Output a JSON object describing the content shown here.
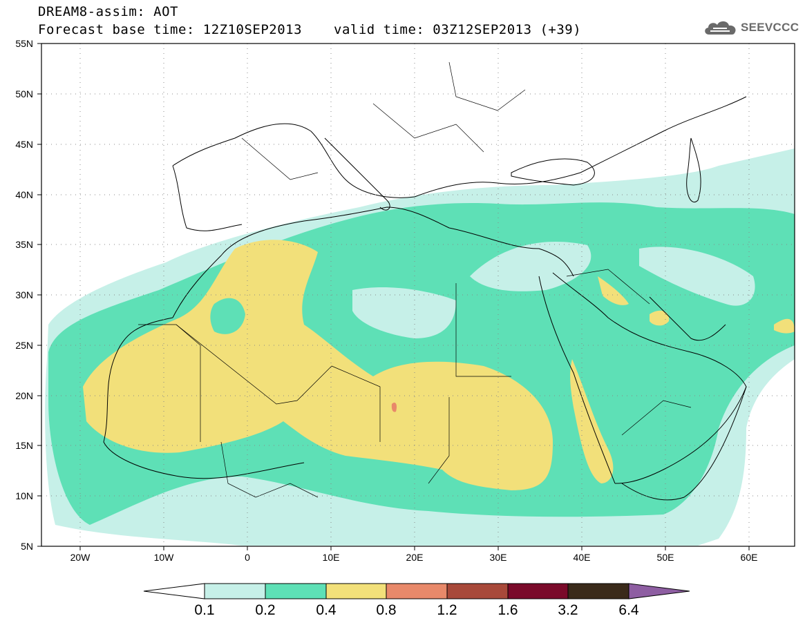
{
  "header": {
    "title_line1": "DREAM8-assim: AOT",
    "title_line2": "Forecast base time: 12Z10SEP2013",
    "valid_time": "valid time: 03Z12SEP2013 (+39)",
    "logo_text": "SEEVCCC"
  },
  "map": {
    "projection": "equirectangular",
    "lon_range": [
      -25,
      65
    ],
    "lat_range": [
      5,
      55
    ],
    "lon_ticks": [
      "20W",
      "10W",
      "0",
      "10E",
      "20E",
      "30E",
      "40E",
      "50E",
      "60E"
    ],
    "lat_ticks": [
      "55N",
      "50N",
      "45N",
      "40N",
      "35N",
      "30N",
      "25N",
      "20N",
      "15N",
      "10N",
      "5N"
    ],
    "grid": "dotted",
    "variable": "AOT"
  },
  "colorbar": {
    "levels": [
      "0.1",
      "0.2",
      "0.4",
      "0.8",
      "1.2",
      "1.6",
      "3.2",
      "6.4"
    ],
    "colors": [
      "#ffffff",
      "#c6f0e8",
      "#5ee0b6",
      "#f2e07a",
      "#e8896a",
      "#a8493a",
      "#7a0a2a",
      "#3a2a1a",
      "#8e5ea2"
    ]
  }
}
